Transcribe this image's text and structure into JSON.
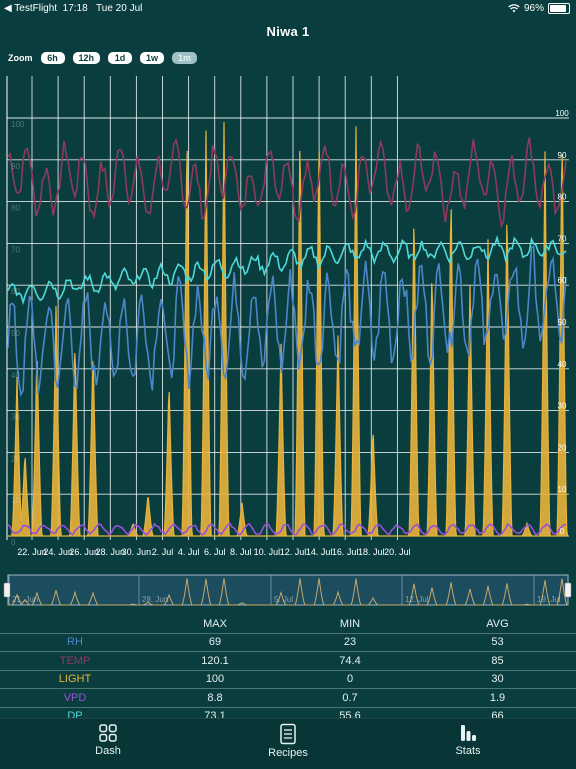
{
  "status_bar": {
    "back_app": "◀ TestFlight",
    "time": "17:18",
    "date": "Tue 20 Jul",
    "wifi_icon": "wifi-icon",
    "battery_percent": "96%",
    "battery_level": 0.96
  },
  "nav": {
    "title": "Niwa 1"
  },
  "zoom": {
    "label": "Zoom",
    "options": [
      "6h",
      "12h",
      "1d",
      "1w",
      "1m"
    ],
    "selected": "1m"
  },
  "colors": {
    "background": "#0a3e3e",
    "rh": "#4c86c8",
    "temp": "#8e3a5e",
    "light": "#e8b33c",
    "vpd": "#9a4fd8",
    "dp": "#4fd8d8"
  },
  "chart_data": {
    "type": "line",
    "x_ticks": [
      "22. Jun",
      "24. Jun",
      "26. Jun",
      "28. Jun",
      "30. Jun",
      "2. Jul",
      "4. Jul",
      "6. Jul",
      "8. Jul",
      "10. Jul",
      "12. Jul",
      "14. Jul",
      "16. Jul",
      "18. Jul",
      "20. Jul"
    ],
    "left_ticks": [
      "0",
      "10",
      "20",
      "30",
      "40",
      "50",
      "60",
      "70",
      "80",
      "90",
      "100"
    ],
    "right_ticks": [
      "0",
      "10",
      "20",
      "30",
      "40",
      "50",
      "60",
      "70",
      "80",
      "90",
      "100"
    ],
    "ylim": [
      0,
      100
    ],
    "grid": true,
    "series": [
      {
        "name": "RH",
        "color": "#4c86c8"
      },
      {
        "name": "TEMP",
        "color": "#8e3a5e"
      },
      {
        "name": "LIGHT",
        "color": "#e8b33c"
      },
      {
        "name": "VPD",
        "color": "#9a4fd8"
      },
      {
        "name": "DP",
        "color": "#4fd8d8"
      }
    ],
    "navigator_ticks": [
      "21. Jun",
      "28. Jun",
      "5. Jul",
      "12. Jul",
      "19. Jul"
    ]
  },
  "stats": {
    "headers": [
      "",
      "MAX",
      "MIN",
      "AVG"
    ],
    "rows": [
      {
        "label": "RH",
        "color": "#4c86c8",
        "max": "69",
        "min": "23",
        "avg": "53"
      },
      {
        "label": "TEMP",
        "color": "#8e3a5e",
        "max": "120.1",
        "min": "74.4",
        "avg": "85"
      },
      {
        "label": "LIGHT",
        "color": "#e8b33c",
        "max": "100",
        "min": "0",
        "avg": "30"
      },
      {
        "label": "VPD",
        "color": "#9a4fd8",
        "max": "8.8",
        "min": "0.7",
        "avg": "1.9"
      },
      {
        "label": "DP",
        "color": "#4fd8d8",
        "max": "73.1",
        "min": "55.6",
        "avg": "66"
      }
    ]
  },
  "tabs": [
    {
      "label": "Dash",
      "icon": "dashboard-grid-icon"
    },
    {
      "label": "Recipes",
      "icon": "document-list-icon"
    },
    {
      "label": "Stats",
      "icon": "bar-stats-icon"
    }
  ]
}
